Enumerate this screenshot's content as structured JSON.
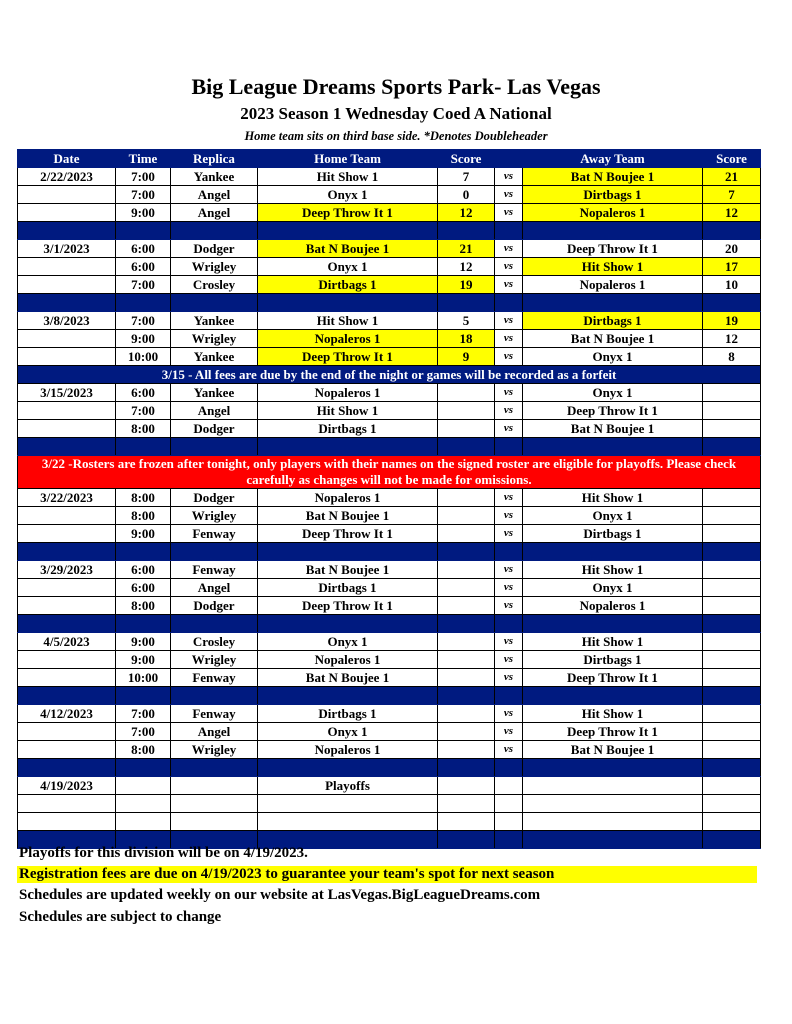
{
  "header": {
    "title": "Big League Dreams Sports Park- Las Vegas",
    "subtitle": "2023 Season 1 Wednesday Coed A National",
    "note": "Home team sits on third base side.  *Denotes Doubleheader"
  },
  "colors": {
    "navy": "#001a80",
    "highlight": "#ffff00",
    "alert": "#ff0000"
  },
  "columns": [
    "Date",
    "Time",
    "Replica",
    "Home Team",
    "Score",
    "",
    "Away Team",
    "Score"
  ],
  "rows": [
    {
      "type": "game",
      "date": "2/22/2023",
      "time": "7:00",
      "field": "Yankee",
      "home": "Hit Show 1",
      "hs": "7",
      "away": "Bat N Boujee 1",
      "as": "21",
      "win": "away"
    },
    {
      "type": "game",
      "date": "",
      "time": "7:00",
      "field": "Angel",
      "home": "Onyx 1",
      "hs": "0",
      "away": "Dirtbags 1",
      "as": "7",
      "win": "away"
    },
    {
      "type": "game",
      "date": "",
      "time": "9:00",
      "field": "Angel",
      "home": "Deep Throw It 1",
      "hs": "12",
      "away": "Nopaleros 1",
      "as": "12",
      "win": "both"
    },
    {
      "type": "sep"
    },
    {
      "type": "game",
      "date": "3/1/2023",
      "time": "6:00",
      "field": "Dodger",
      "home": "Bat N Boujee 1",
      "hs": "21",
      "away": "Deep Throw It 1",
      "as": "20",
      "win": "home"
    },
    {
      "type": "game",
      "date": "",
      "time": "6:00",
      "field": "Wrigley",
      "home": "Onyx 1",
      "hs": "12",
      "away": "Hit Show 1",
      "as": "17",
      "win": "away"
    },
    {
      "type": "game",
      "date": "",
      "time": "7:00",
      "field": "Crosley",
      "home": "Dirtbags 1",
      "hs": "19",
      "away": "Nopaleros 1",
      "as": "10",
      "win": "home"
    },
    {
      "type": "sep"
    },
    {
      "type": "game",
      "date": "3/8/2023",
      "time": "7:00",
      "field": "Yankee",
      "home": "Hit Show 1",
      "hs": "5",
      "away": "Dirtbags 1",
      "as": "19",
      "win": "away"
    },
    {
      "type": "game",
      "date": "",
      "time": "9:00",
      "field": "Wrigley",
      "home": "Nopaleros 1",
      "hs": "18",
      "away": "Bat N Boujee 1",
      "as": "12",
      "win": "home"
    },
    {
      "type": "game",
      "date": "",
      "time": "10:00",
      "field": "Yankee",
      "home": "Deep Throw It 1",
      "hs": "9",
      "away": "Onyx 1",
      "as": "8",
      "win": "home"
    },
    {
      "type": "banner",
      "text": "3/15 - All fees are due by the end of the night or games will be recorded as a forfeit"
    },
    {
      "type": "game",
      "date": "3/15/2023",
      "time": "6:00",
      "field": "Yankee",
      "home": "Nopaleros 1",
      "hs": "",
      "away": "Onyx 1",
      "as": "",
      "win": ""
    },
    {
      "type": "game",
      "date": "",
      "time": "7:00",
      "field": "Angel",
      "home": "Hit Show 1",
      "hs": "",
      "away": "Deep Throw It 1",
      "as": "",
      "win": ""
    },
    {
      "type": "game",
      "date": "",
      "time": "8:00",
      "field": "Dodger",
      "home": "Dirtbags 1",
      "hs": "",
      "away": "Bat N Boujee 1",
      "as": "",
      "win": ""
    },
    {
      "type": "sep"
    },
    {
      "type": "red",
      "text": "3/22 -Rosters are frozen after tonight, only players with their names on the signed roster are eligible for playoffs. Please check carefully as changes will not be made for omissions."
    },
    {
      "type": "game",
      "date": "3/22/2023",
      "time": "8:00",
      "field": "Dodger",
      "home": "Nopaleros 1",
      "hs": "",
      "away": "Hit Show 1",
      "as": "",
      "win": ""
    },
    {
      "type": "game",
      "date": "",
      "time": "8:00",
      "field": "Wrigley",
      "home": "Bat N Boujee 1",
      "hs": "",
      "away": "Onyx 1",
      "as": "",
      "win": ""
    },
    {
      "type": "game",
      "date": "",
      "time": "9:00",
      "field": "Fenway",
      "home": "Deep Throw It 1",
      "hs": "",
      "away": "Dirtbags 1",
      "as": "",
      "win": ""
    },
    {
      "type": "sep"
    },
    {
      "type": "game",
      "date": "3/29/2023",
      "time": "6:00",
      "field": "Fenway",
      "home": "Bat N Boujee 1",
      "hs": "",
      "away": "Hit Show 1",
      "as": "",
      "win": ""
    },
    {
      "type": "game",
      "date": "",
      "time": "6:00",
      "field": "Angel",
      "home": "Dirtbags 1",
      "hs": "",
      "away": "Onyx 1",
      "as": "",
      "win": ""
    },
    {
      "type": "game",
      "date": "",
      "time": "8:00",
      "field": "Dodger",
      "home": "Deep Throw It 1",
      "hs": "",
      "away": "Nopaleros 1",
      "as": "",
      "win": ""
    },
    {
      "type": "sep"
    },
    {
      "type": "game",
      "date": "4/5/2023",
      "time": "9:00",
      "field": "Crosley",
      "home": "Onyx 1",
      "hs": "",
      "away": "Hit Show 1",
      "as": "",
      "win": ""
    },
    {
      "type": "game",
      "date": "",
      "time": "9:00",
      "field": "Wrigley",
      "home": "Nopaleros 1",
      "hs": "",
      "away": "Dirtbags 1",
      "as": "",
      "win": ""
    },
    {
      "type": "game",
      "date": "",
      "time": "10:00",
      "field": "Fenway",
      "home": "Bat N Boujee 1",
      "hs": "",
      "away": "Deep Throw It 1",
      "as": "",
      "win": ""
    },
    {
      "type": "sep"
    },
    {
      "type": "game",
      "date": "4/12/2023",
      "time": "7:00",
      "field": "Fenway",
      "home": "Dirtbags 1",
      "hs": "",
      "away": "Hit Show 1",
      "as": "",
      "win": ""
    },
    {
      "type": "game",
      "date": "",
      "time": "7:00",
      "field": "Angel",
      "home": "Onyx 1",
      "hs": "",
      "away": "Deep Throw It 1",
      "as": "",
      "win": ""
    },
    {
      "type": "game",
      "date": "",
      "time": "8:00",
      "field": "Wrigley",
      "home": "Nopaleros 1",
      "hs": "",
      "away": "Bat N Boujee 1",
      "as": "",
      "win": ""
    },
    {
      "type": "sep"
    },
    {
      "type": "game",
      "date": "4/19/2023",
      "time": "",
      "field": "",
      "home": "Playoffs",
      "hs": "",
      "away": "",
      "as": "",
      "win": "",
      "novs": true
    },
    {
      "type": "game",
      "date": "",
      "time": "",
      "field": "",
      "home": "",
      "hs": "",
      "away": "",
      "as": "",
      "win": "",
      "novs": true
    },
    {
      "type": "game",
      "date": "",
      "time": "",
      "field": "",
      "home": "",
      "hs": "",
      "away": "",
      "as": "",
      "win": "",
      "novs": true
    },
    {
      "type": "sep"
    }
  ],
  "vs_label": "vs",
  "footer": [
    "Playoffs for this division will be on 4/19/2023.",
    "Registration fees are due on 4/19/2023 to guarantee your team's spot for next season",
    "Schedules are updated weekly on our website at LasVegas.BigLeagueDreams.com",
    "Schedules are subject to change"
  ]
}
